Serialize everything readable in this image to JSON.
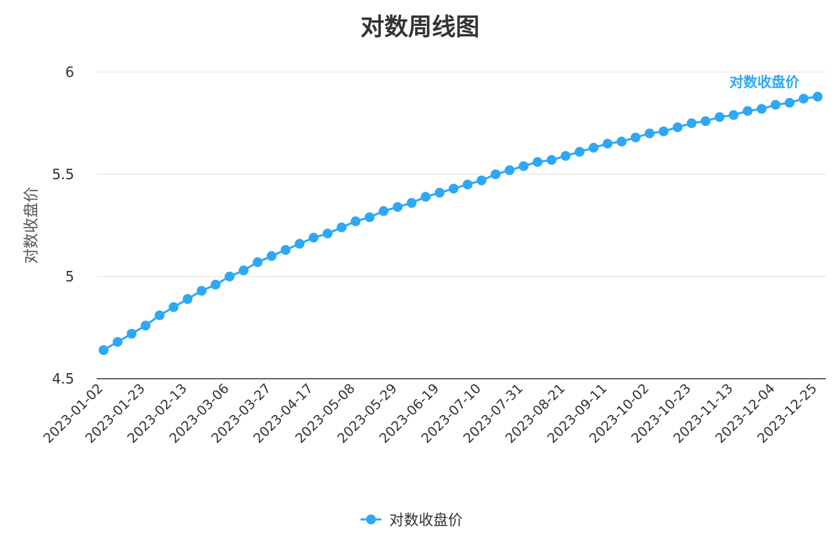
{
  "chart_data": {
    "type": "line",
    "title": "对数周线图",
    "ylabel": "对数收盘价",
    "xlabel": "",
    "ylim": [
      4.5,
      6
    ],
    "yticks": [
      "4.5",
      "5",
      "5.5",
      "6"
    ],
    "ytick_values": [
      4.5,
      5,
      5.5,
      6
    ],
    "grid": "horizontal",
    "legend_position": "bottom",
    "color": "#2ea8f5",
    "x_tick_labels": [
      "2023-01-02",
      "2023-01-23",
      "2023-02-13",
      "2023-03-06",
      "2023-03-27",
      "2023-04-17",
      "2023-05-08",
      "2023-05-29",
      "2023-06-19",
      "2023-07-10",
      "2023-07-31",
      "2023-08-21",
      "2023-09-11",
      "2023-10-02",
      "2023-10-23",
      "2023-11-13",
      "2023-12-04",
      "2023-12-25"
    ],
    "series": [
      {
        "name": "对数收盘价",
        "end_label": "对数收盘价",
        "x": [
          "2023-01-02",
          "2023-01-09",
          "2023-01-16",
          "2023-01-23",
          "2023-01-30",
          "2023-02-06",
          "2023-02-13",
          "2023-02-20",
          "2023-02-27",
          "2023-03-06",
          "2023-03-13",
          "2023-03-20",
          "2023-03-27",
          "2023-04-03",
          "2023-04-10",
          "2023-04-17",
          "2023-04-24",
          "2023-05-01",
          "2023-05-08",
          "2023-05-15",
          "2023-05-22",
          "2023-05-29",
          "2023-06-05",
          "2023-06-12",
          "2023-06-19",
          "2023-06-26",
          "2023-07-03",
          "2023-07-10",
          "2023-07-17",
          "2023-07-24",
          "2023-07-31",
          "2023-08-07",
          "2023-08-14",
          "2023-08-21",
          "2023-08-28",
          "2023-09-04",
          "2023-09-11",
          "2023-09-18",
          "2023-09-25",
          "2023-10-02",
          "2023-10-09",
          "2023-10-16",
          "2023-10-23",
          "2023-10-30",
          "2023-11-06",
          "2023-11-13",
          "2023-11-20",
          "2023-11-27",
          "2023-12-04",
          "2023-12-11",
          "2023-12-18",
          "2023-12-25"
        ],
        "values": [
          4.64,
          4.68,
          4.72,
          4.76,
          4.81,
          4.85,
          4.89,
          4.93,
          4.96,
          5.0,
          5.03,
          5.07,
          5.1,
          5.13,
          5.16,
          5.19,
          5.21,
          5.24,
          5.27,
          5.29,
          5.32,
          5.34,
          5.36,
          5.39,
          5.41,
          5.43,
          5.45,
          5.47,
          5.5,
          5.52,
          5.54,
          5.56,
          5.57,
          5.59,
          5.61,
          5.63,
          5.65,
          5.66,
          5.68,
          5.7,
          5.71,
          5.73,
          5.75,
          5.76,
          5.78,
          5.79,
          5.81,
          5.82,
          5.84,
          5.85,
          5.87,
          5.88
        ]
      }
    ]
  }
}
